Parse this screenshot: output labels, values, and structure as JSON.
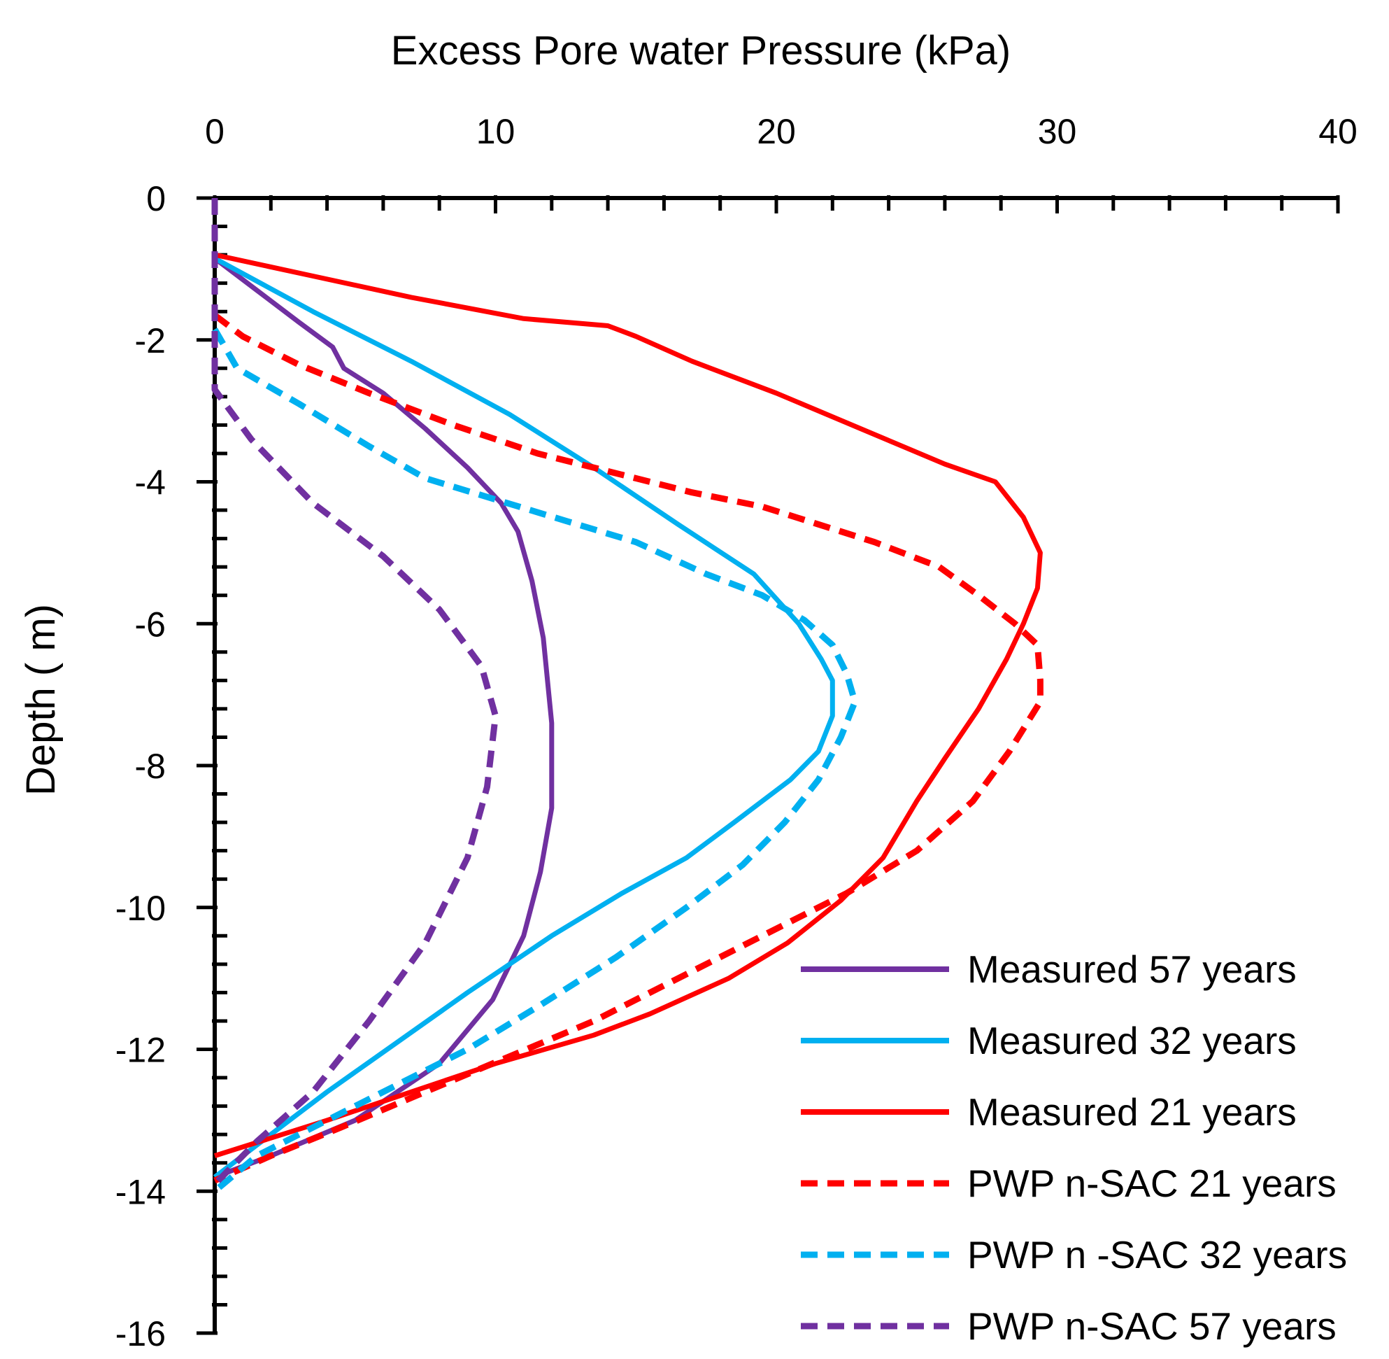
{
  "chart_data": {
    "type": "line",
    "title": "",
    "xlabel": "Excess Pore water Pressure (kPa)",
    "ylabel": "Depth ( m)",
    "xlim": [
      0,
      40
    ],
    "ylim": [
      -16,
      0
    ],
    "x_ticks": [
      0,
      10,
      20,
      30,
      40
    ],
    "y_ticks": [
      0,
      -2,
      -4,
      -6,
      -8,
      -10,
      -12,
      -14,
      -16
    ],
    "x_tick_labels": [
      "0",
      "10",
      "20",
      "30",
      "40"
    ],
    "y_tick_labels": [
      "0",
      "-2",
      "-4",
      "-6",
      "-8",
      "-10",
      "-12",
      "-14",
      "-16"
    ],
    "x_axis_position": "top",
    "grid": false,
    "legend_position": "bottom-right",
    "series": [
      {
        "name": "Measured 57 years",
        "color": "#7030A0",
        "dash": "solid",
        "points": [
          [
            0,
            -0.85
          ],
          [
            1.5,
            -1.3
          ],
          [
            3,
            -1.75
          ],
          [
            4.2,
            -2.1
          ],
          [
            4.6,
            -2.4
          ],
          [
            6,
            -2.75
          ],
          [
            7.5,
            -3.25
          ],
          [
            9,
            -3.8
          ],
          [
            10.2,
            -4.3
          ],
          [
            10.8,
            -4.7
          ],
          [
            11.3,
            -5.4
          ],
          [
            11.7,
            -6.2
          ],
          [
            12,
            -7.4
          ],
          [
            12,
            -8.6
          ],
          [
            11.6,
            -9.5
          ],
          [
            11,
            -10.4
          ],
          [
            9.9,
            -11.3
          ],
          [
            8,
            -12.2
          ],
          [
            5,
            -13
          ],
          [
            2,
            -13.5
          ],
          [
            0,
            -13.8
          ]
        ]
      },
      {
        "name": "Measured  32 years",
        "color": "#00B0F0",
        "dash": "solid",
        "points": [
          [
            0,
            -0.85
          ],
          [
            3.5,
            -1.6
          ],
          [
            7,
            -2.3
          ],
          [
            10.5,
            -3.05
          ],
          [
            13.5,
            -3.8
          ],
          [
            16.5,
            -4.6
          ],
          [
            19.2,
            -5.3
          ],
          [
            20.8,
            -6
          ],
          [
            21.6,
            -6.5
          ],
          [
            22,
            -6.8
          ],
          [
            22,
            -7.3
          ],
          [
            21.5,
            -7.8
          ],
          [
            20.5,
            -8.2
          ],
          [
            18.5,
            -8.8
          ],
          [
            16.8,
            -9.3
          ],
          [
            14.5,
            -9.8
          ],
          [
            12,
            -10.4
          ],
          [
            9,
            -11.2
          ],
          [
            6.5,
            -11.9
          ],
          [
            4,
            -12.6
          ],
          [
            2,
            -13.2
          ],
          [
            0,
            -13.8
          ]
        ]
      },
      {
        "name": "Measured 21 years",
        "color": "#FF0000",
        "dash": "solid",
        "points": [
          [
            0,
            -0.8
          ],
          [
            3.5,
            -1.1
          ],
          [
            7,
            -1.4
          ],
          [
            11,
            -1.7
          ],
          [
            14,
            -1.8
          ],
          [
            15,
            -1.95
          ],
          [
            17,
            -2.3
          ],
          [
            20,
            -2.75
          ],
          [
            23,
            -3.25
          ],
          [
            26,
            -3.75
          ],
          [
            27.8,
            -4.0
          ],
          [
            28.8,
            -4.5
          ],
          [
            29.4,
            -5.0
          ],
          [
            29.3,
            -5.5
          ],
          [
            28.8,
            -6.0
          ],
          [
            28.2,
            -6.5
          ],
          [
            27.2,
            -7.2
          ],
          [
            26,
            -7.9
          ],
          [
            25,
            -8.5
          ],
          [
            23.8,
            -9.3
          ],
          [
            22.3,
            -9.9
          ],
          [
            20.4,
            -10.5
          ],
          [
            18.3,
            -11.0
          ],
          [
            15.5,
            -11.5
          ],
          [
            13.5,
            -11.8
          ],
          [
            10,
            -12.2
          ],
          [
            7,
            -12.6
          ],
          [
            4,
            -13.0
          ],
          [
            0,
            -13.5
          ]
        ]
      },
      {
        "name": "PWP n-SAC 21 years",
        "color": "#FF0000",
        "dash": "dashed",
        "points": [
          [
            0,
            -1.65
          ],
          [
            1,
            -1.95
          ],
          [
            3,
            -2.35
          ],
          [
            5.5,
            -2.75
          ],
          [
            8.5,
            -3.2
          ],
          [
            11.5,
            -3.6
          ],
          [
            14.5,
            -3.9
          ],
          [
            17,
            -4.15
          ],
          [
            19.5,
            -4.35
          ],
          [
            21.5,
            -4.6
          ],
          [
            23.5,
            -4.85
          ],
          [
            25.8,
            -5.2
          ],
          [
            27.2,
            -5.6
          ],
          [
            28.5,
            -6.0
          ],
          [
            29.3,
            -6.3
          ],
          [
            29.4,
            -6.8
          ],
          [
            29.4,
            -7.1
          ],
          [
            28.3,
            -7.8
          ],
          [
            27,
            -8.5
          ],
          [
            25,
            -9.2
          ],
          [
            22.5,
            -9.8
          ],
          [
            19.5,
            -10.4
          ],
          [
            16.5,
            -11.0
          ],
          [
            13.5,
            -11.6
          ],
          [
            10.5,
            -12.1
          ],
          [
            7.5,
            -12.6
          ],
          [
            4.5,
            -13.1
          ],
          [
            2,
            -13.5
          ],
          [
            0,
            -13.85
          ]
        ]
      },
      {
        "name": "PWP n -SAC 32 years",
        "color": "#00B0F0",
        "dash": "dashed",
        "points": [
          [
            0,
            -1.85
          ],
          [
            0.8,
            -2.4
          ],
          [
            3,
            -2.9
          ],
          [
            5.5,
            -3.5
          ],
          [
            7.5,
            -3.95
          ],
          [
            10,
            -4.25
          ],
          [
            12.5,
            -4.55
          ],
          [
            15,
            -4.85
          ],
          [
            17.5,
            -5.3
          ],
          [
            19.5,
            -5.6
          ],
          [
            21,
            -5.95
          ],
          [
            22,
            -6.3
          ],
          [
            22.5,
            -6.7
          ],
          [
            22.8,
            -7.1
          ],
          [
            22.3,
            -7.6
          ],
          [
            21.5,
            -8.2
          ],
          [
            20.3,
            -8.8
          ],
          [
            18.8,
            -9.4
          ],
          [
            16.8,
            -10.0
          ],
          [
            14.3,
            -10.7
          ],
          [
            11.5,
            -11.4
          ],
          [
            9,
            -12.0
          ],
          [
            6.5,
            -12.5
          ],
          [
            4,
            -13.0
          ],
          [
            1.5,
            -13.5
          ],
          [
            0,
            -14.0
          ]
        ]
      },
      {
        "name": "PWP n-SAC 57 years",
        "color": "#7030A0",
        "dash": "dashed",
        "points": [
          [
            0,
            0
          ],
          [
            0,
            -2.7
          ],
          [
            1.3,
            -3.4
          ],
          [
            3.5,
            -4.3
          ],
          [
            6,
            -5.05
          ],
          [
            8,
            -5.8
          ],
          [
            9.5,
            -6.6
          ],
          [
            10,
            -7.3
          ],
          [
            9.7,
            -8.3
          ],
          [
            9,
            -9.3
          ],
          [
            7.5,
            -10.5
          ],
          [
            5.5,
            -11.6
          ],
          [
            3.5,
            -12.6
          ],
          [
            1.5,
            -13.3
          ],
          [
            0,
            -13.9
          ]
        ]
      }
    ]
  }
}
